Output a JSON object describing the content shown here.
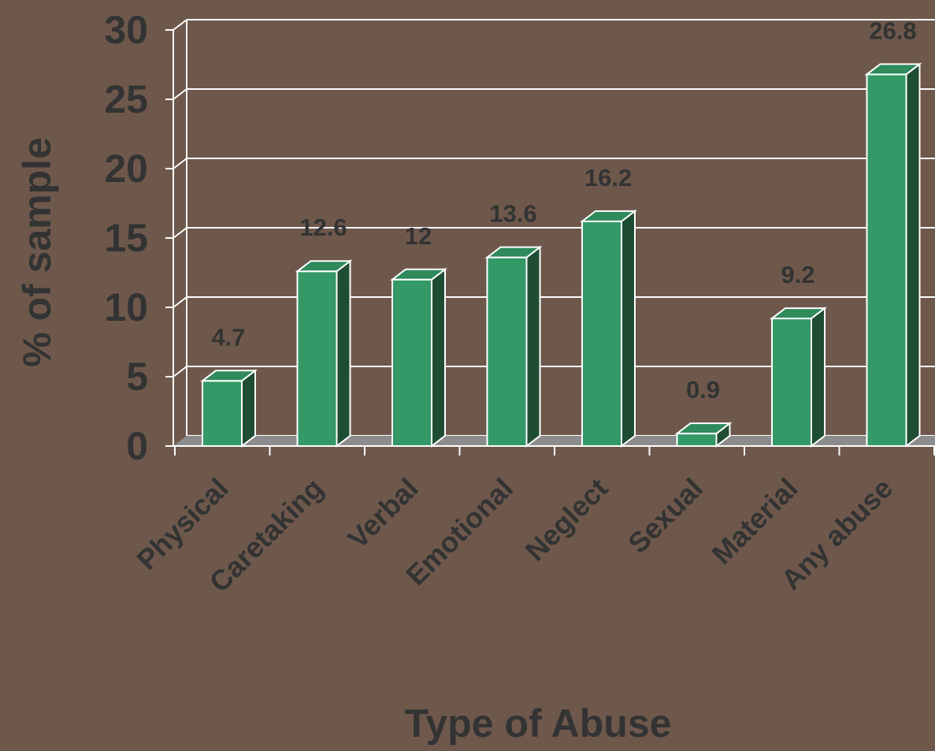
{
  "chart_data": {
    "type": "bar",
    "title": "",
    "xlabel": "Type of Abuse",
    "ylabel": "% of sample",
    "categories": [
      "Physical",
      "Caretaking",
      "Verbal",
      "Emotional",
      "Neglect",
      "Sexual",
      "Material",
      "Any abuse"
    ],
    "series": [
      {
        "values": [
          4.7,
          12.6,
          12,
          13.6,
          16.2,
          0.9,
          9.2,
          26.8
        ]
      }
    ],
    "value_labels": [
      "4.7",
      "12.6",
      "12",
      "13.6",
      "16.2",
      "0.9",
      "9.2",
      "26.8"
    ],
    "ylim": [
      0,
      30
    ],
    "yticks": [
      0,
      5,
      10,
      15,
      20,
      25,
      30
    ],
    "grid": true,
    "legend": "none",
    "style": "3d"
  },
  "colors": {
    "background": "#6e584c",
    "bar_front": "#339966",
    "bar_top": "#2f8a5c",
    "bar_side": "#1f4d33",
    "floor": "#8c8c8c",
    "text": "#333333",
    "grid": "#ffffff"
  }
}
